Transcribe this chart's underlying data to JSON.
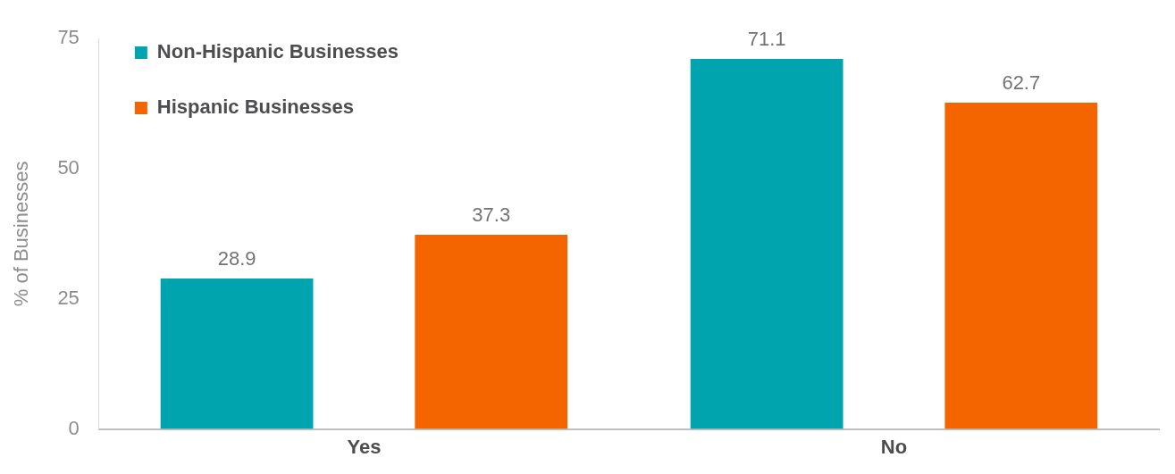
{
  "chart_data": {
    "type": "bar",
    "ylabel": "% of Businesses",
    "categories": [
      "Yes",
      "No"
    ],
    "series": [
      {
        "name": "Non-Hispanic Businesses",
        "color": "#00a4ae",
        "values": [
          28.9,
          71.1
        ]
      },
      {
        "name": "Hispanic Businesses",
        "color": "#f46500",
        "values": [
          37.3,
          62.7
        ]
      }
    ],
    "ylim": [
      0,
      75
    ],
    "yticks": [
      0,
      25,
      50,
      75
    ],
    "grid": false,
    "legend": "top left",
    "data_labels": true
  }
}
